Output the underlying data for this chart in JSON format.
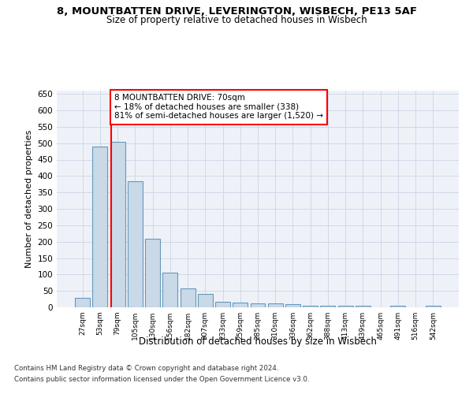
{
  "title1": "8, MOUNTBATTEN DRIVE, LEVERINGTON, WISBECH, PE13 5AF",
  "title2": "Size of property relative to detached houses in Wisbech",
  "xlabel": "Distribution of detached houses by size in Wisbech",
  "ylabel": "Number of detached properties",
  "footer1": "Contains HM Land Registry data © Crown copyright and database right 2024.",
  "footer2": "Contains public sector information licensed under the Open Government Licence v3.0.",
  "annotation_line1": "8 MOUNTBATTEN DRIVE: 70sqm",
  "annotation_line2": "← 18% of detached houses are smaller (338)",
  "annotation_line3": "81% of semi-detached houses are larger (1,520) →",
  "bar_color": "#c9d9e8",
  "bar_edge_color": "#6699bb",
  "categories": [
    "27sqm",
    "53sqm",
    "79sqm",
    "105sqm",
    "130sqm",
    "156sqm",
    "182sqm",
    "207sqm",
    "233sqm",
    "259sqm",
    "285sqm",
    "310sqm",
    "336sqm",
    "362sqm",
    "388sqm",
    "413sqm",
    "439sqm",
    "465sqm",
    "491sqm",
    "516sqm",
    "542sqm"
  ],
  "values": [
    30,
    490,
    504,
    383,
    210,
    105,
    58,
    40,
    18,
    14,
    12,
    11,
    9,
    5,
    5,
    5,
    4,
    1,
    4,
    1,
    4
  ],
  "ylim": [
    0,
    660
  ],
  "yticks": [
    0,
    50,
    100,
    150,
    200,
    250,
    300,
    350,
    400,
    450,
    500,
    550,
    600,
    650
  ],
  "grid_color": "#d0d8e8",
  "background_color": "#eef2f8"
}
